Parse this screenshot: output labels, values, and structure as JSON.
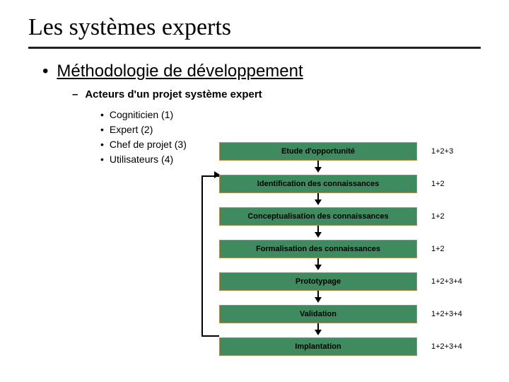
{
  "title": "Les systèmes experts",
  "section_heading": "Méthodologie de développement",
  "subsection": "Acteurs d'un projet système expert",
  "actors": [
    {
      "label": "Cogniticien (1)"
    },
    {
      "label": "Expert (2)"
    },
    {
      "label": "Chef de projet (3)"
    },
    {
      "label": "Utilisateurs (4)"
    }
  ],
  "flow": {
    "box_bg": "#3f8a5f",
    "box_border": "#b4864a",
    "steps": [
      {
        "label": "Etude d'opportunité",
        "code": "1+2+3"
      },
      {
        "label": "Identification des connaissances",
        "code": "1+2"
      },
      {
        "label": "Conceptualisation des connaissances",
        "code": "1+2"
      },
      {
        "label": "Formalisation des connaissances",
        "code": "1+2"
      },
      {
        "label": "Prototypage",
        "code": "1+2+3+4"
      },
      {
        "label": "Validation",
        "code": "1+2+3+4"
      },
      {
        "label": "Implantation",
        "code": "1+2+3+4"
      }
    ]
  },
  "typography": {
    "title_fontsize": 34,
    "heading_fontsize": 24,
    "sub_fontsize": 15,
    "list_fontsize": 14,
    "box_fontsize": 11
  }
}
